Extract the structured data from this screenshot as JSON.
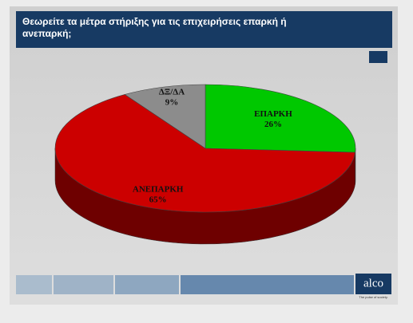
{
  "chart_data": {
    "type": "pie",
    "title": "Θεωρείτε τα μέτρα στήριξης για τις επιχειρήσεις επαρκή ή ανεπαρκή;",
    "unit_badge": "%",
    "categories": [
      "ΕΠΑΡΚΗ",
      "ΑΝΕΠΑΡΚΗ",
      "ΔΞ/ΔΑ"
    ],
    "values": [
      26,
      65,
      9
    ],
    "value_labels": [
      "26%",
      "65%",
      "9%"
    ],
    "colors": [
      "#00c800",
      "#cc0000",
      "#8c8c8c"
    ],
    "side_colors": [
      "#008a00",
      "#6e0000",
      "#5a5a5a"
    ]
  },
  "footer": {
    "logo": "alco",
    "tagline": "The pulse of society."
  }
}
